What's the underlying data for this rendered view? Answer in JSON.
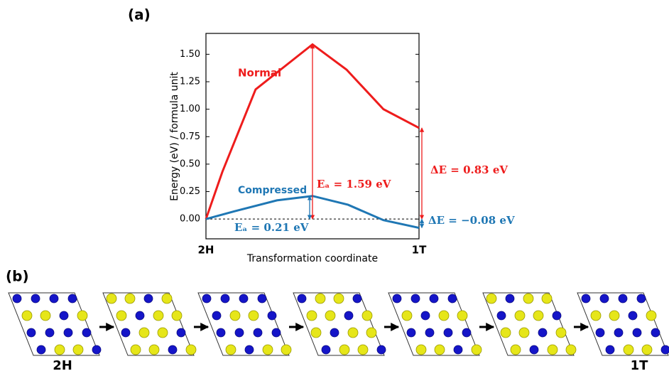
{
  "panel_a_label": "(a)",
  "panel_b_label": "(b)",
  "chart_data": {
    "type": "line",
    "ylabel": "Energy (eV) / formula unit",
    "xlabel": "Transformation coordinate",
    "xlim": [
      0,
      1
    ],
    "xticks": [
      {
        "value": 0,
        "label": "2H"
      },
      {
        "value": 1,
        "label": "1T"
      }
    ],
    "ylim": [
      -0.18,
      1.69
    ],
    "yticks": [
      {
        "value": 0,
        "label": "0.00"
      },
      {
        "value": 0.25,
        "label": "0.25"
      },
      {
        "value": 0.5,
        "label": "0.50"
      },
      {
        "value": 0.75,
        "label": "0.75"
      },
      {
        "value": 1,
        "label": "1.00"
      },
      {
        "value": 1.25,
        "label": "1.25"
      },
      {
        "value": 1.5,
        "label": "1.50"
      }
    ],
    "series": [
      {
        "name": "Normal",
        "color": "#ee1c1c",
        "x": [
          0,
          0.077,
          0.233,
          0.5,
          0.66,
          0.833,
          1
        ],
        "values": [
          0,
          0.43,
          1.18,
          1.59,
          1.36,
          1.0,
          0.83
        ]
      },
      {
        "name": "Compressed",
        "color": "#1f77b4",
        "x": [
          0,
          0.133,
          0.333,
          0.5,
          0.667,
          0.833,
          1
        ],
        "values": [
          0,
          0.07,
          0.17,
          0.21,
          0.13,
          -0.01,
          -0.08
        ]
      }
    ],
    "annotations": [
      "Eₐ = 1.59 eV",
      "Eₐ = 0.21 eV",
      "ΔE = 0.83 eV",
      "ΔE = −0.08 eV"
    ]
  },
  "structures": {
    "first_label": "2H",
    "last_label": "1T"
  }
}
